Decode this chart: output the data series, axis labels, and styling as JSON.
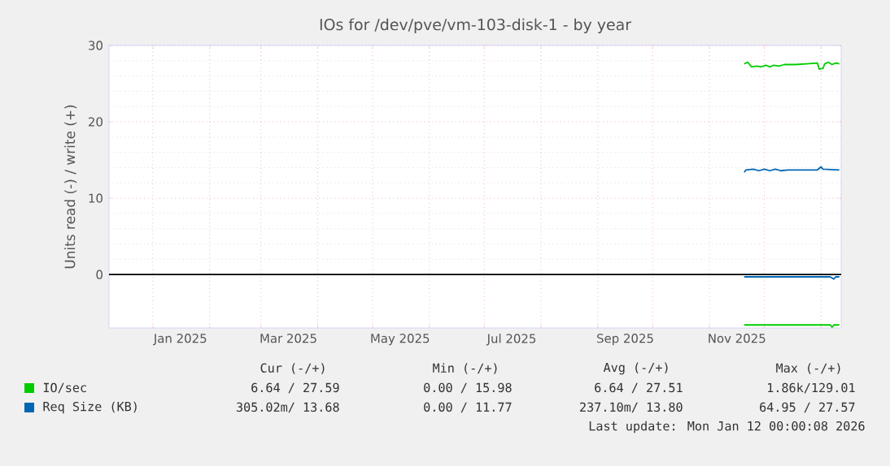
{
  "chart_data": {
    "type": "line",
    "title": "IOs for /dev/pve/vm-103-disk-1 - by year",
    "ylabel": "Units read (-) / write (+)",
    "xlim": [
      "2024-12-08",
      "2026-01-12"
    ],
    "ylim": [
      -7,
      30
    ],
    "yticks": [
      0,
      10,
      20,
      30
    ],
    "xticks": [
      {
        "value": "2025-01-01",
        "label": null
      },
      {
        "value": "2025-01-16",
        "label": "Jan 2025"
      },
      {
        "value": "2025-02-01",
        "label": null
      },
      {
        "value": "2025-03-01",
        "label": null
      },
      {
        "value": "2025-03-16",
        "label": "Mar 2025"
      },
      {
        "value": "2025-04-01",
        "label": null
      },
      {
        "value": "2025-05-01",
        "label": null
      },
      {
        "value": "2025-05-16",
        "label": "May 2025"
      },
      {
        "value": "2025-06-01",
        "label": null
      },
      {
        "value": "2025-07-01",
        "label": null
      },
      {
        "value": "2025-07-16",
        "label": "Jul 2025"
      },
      {
        "value": "2025-08-01",
        "label": null
      },
      {
        "value": "2025-09-01",
        "label": null
      },
      {
        "value": "2025-09-16",
        "label": "Sep 2025"
      },
      {
        "value": "2025-10-01",
        "label": null
      },
      {
        "value": "2025-11-01",
        "label": null
      },
      {
        "value": "2025-11-16",
        "label": "Nov 2025"
      },
      {
        "value": "2025-12-01",
        "label": null
      },
      {
        "value": "2026-01-01",
        "label": null
      }
    ],
    "grid": true,
    "legend": "bottom left",
    "ref_lines": [
      {
        "axis": "y",
        "value": 0,
        "color": "#000000"
      }
    ],
    "series": [
      {
        "name": "IO/sec",
        "color": "#00cc00",
        "x": [
          "2025-11-20",
          "2025-11-22",
          "2025-11-24",
          "2025-11-27",
          "2025-11-29",
          "2025-12-02",
          "2025-12-04",
          "2025-12-06",
          "2025-12-09",
          "2025-12-12",
          "2025-12-18",
          "2025-12-24",
          "2025-12-30",
          "2025-12-31",
          "2026-01-02",
          "2026-01-03",
          "2026-01-05",
          "2026-01-07",
          "2026-01-09",
          "2026-01-11"
        ],
        "values": [
          27.6,
          27.8,
          27.2,
          27.3,
          27.2,
          27.4,
          27.2,
          27.4,
          27.3,
          27.5,
          27.5,
          27.6,
          27.7,
          26.9,
          27.0,
          27.6,
          27.8,
          27.5,
          27.7,
          27.6
        ]
      },
      {
        "color": "#00cc00",
        "x": [
          "2025-11-20",
          "2026-01-06",
          "2026-01-07",
          "2026-01-08",
          "2026-01-11"
        ],
        "values": [
          -6.6,
          -6.6,
          -6.9,
          -6.6,
          -6.6
        ]
      },
      {
        "name": "Req Size (KB)",
        "color": "#0066b3",
        "x": [
          "2025-11-20",
          "2025-11-21",
          "2025-11-25",
          "2025-11-28",
          "2025-12-01",
          "2025-12-04",
          "2025-12-07",
          "2025-12-10",
          "2025-12-14",
          "2025-12-30",
          "2026-01-01",
          "2026-01-02",
          "2026-01-11"
        ],
        "values": [
          13.4,
          13.7,
          13.8,
          13.6,
          13.8,
          13.6,
          13.8,
          13.6,
          13.7,
          13.7,
          14.1,
          13.8,
          13.7
        ]
      },
      {
        "color": "#0066b3",
        "x": [
          "2025-11-20",
          "2026-01-06",
          "2026-01-08",
          "2026-01-09",
          "2026-01-11"
        ],
        "values": [
          -0.3,
          -0.3,
          -0.6,
          -0.3,
          -0.3
        ]
      }
    ],
    "annotations": [
      "Cur (-/+)",
      "Min (-/+)",
      "Avg (-/+)",
      "Max (-/+)",
      "6.64 / 27.59",
      "0.00 / 15.98",
      "6.64 / 27.51",
      "1.86k/129.01",
      "305.02m/ 13.68",
      "0.00 / 11.77",
      "237.10m/ 13.80",
      "64.95 / 27.57",
      "Last update: Mon Jan 12 00:00:08 2026"
    ]
  }
}
